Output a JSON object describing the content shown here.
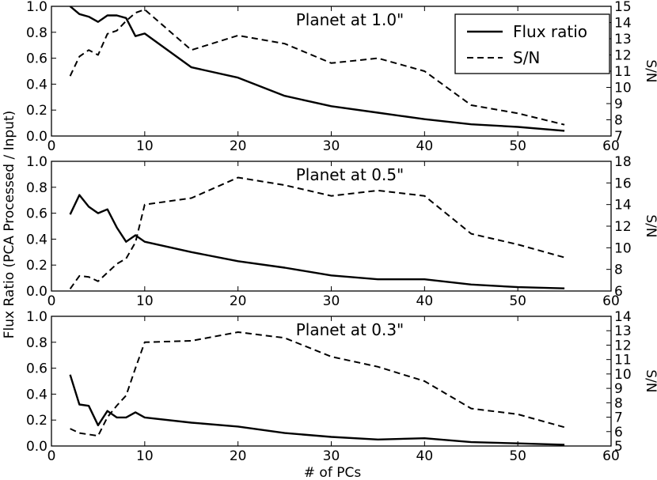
{
  "figure": {
    "ylabel_left": "Flux Ratio (PCA Processed / Input)",
    "xlabel": "# of PCs"
  },
  "legend": {
    "items": [
      {
        "label": "Flux ratio",
        "style": "solid"
      },
      {
        "label": "S/N",
        "style": "dashed"
      }
    ]
  },
  "chart_data": [
    {
      "type": "line",
      "title": "Planet at 1.0\"",
      "xlabel": "",
      "ylabel": "",
      "y2label": "S/N",
      "xlim": [
        0,
        60
      ],
      "ylim": [
        0.0,
        1.0
      ],
      "y2lim": [
        7,
        15
      ],
      "xticks": [
        0,
        10,
        20,
        30,
        40,
        50,
        60
      ],
      "yticks": [
        "0.0",
        "0.2",
        "0.4",
        "0.6",
        "0.8",
        "1.0"
      ],
      "y2ticks": [
        7,
        8,
        9,
        10,
        11,
        12,
        13,
        14,
        15
      ],
      "series": [
        {
          "name": "Flux ratio",
          "axis": "left",
          "style": "solid",
          "x": [
            2,
            3,
            4,
            5,
            6,
            7,
            8,
            9,
            10,
            15,
            20,
            25,
            30,
            35,
            40,
            45,
            50,
            55
          ],
          "y": [
            1.0,
            0.94,
            0.92,
            0.88,
            0.93,
            0.93,
            0.91,
            0.77,
            0.79,
            0.53,
            0.45,
            0.31,
            0.23,
            0.18,
            0.13,
            0.09,
            0.07,
            0.04
          ]
        },
        {
          "name": "S/N",
          "axis": "right",
          "style": "dashed",
          "x": [
            2,
            3,
            4,
            5,
            6,
            7,
            8,
            9,
            10,
            15,
            20,
            25,
            30,
            35,
            40,
            45,
            50,
            55
          ],
          "y": [
            10.7,
            11.9,
            12.3,
            12.0,
            13.3,
            13.5,
            14.1,
            14.6,
            14.8,
            12.3,
            13.2,
            12.7,
            11.5,
            11.8,
            11.0,
            8.9,
            8.4,
            7.7
          ]
        }
      ]
    },
    {
      "type": "line",
      "title": "Planet at 0.5\"",
      "xlabel": "",
      "ylabel": "",
      "y2label": "S/N",
      "xlim": [
        0,
        60
      ],
      "ylim": [
        0.0,
        1.0
      ],
      "y2lim": [
        6,
        18
      ],
      "xticks": [
        0,
        10,
        20,
        30,
        40,
        50,
        60
      ],
      "yticks": [
        "0.0",
        "0.2",
        "0.4",
        "0.6",
        "0.8",
        "1.0"
      ],
      "y2ticks": [
        6,
        8,
        10,
        12,
        14,
        16,
        18
      ],
      "series": [
        {
          "name": "Flux ratio",
          "axis": "left",
          "style": "solid",
          "x": [
            2,
            3,
            4,
            5,
            6,
            7,
            8,
            9,
            10,
            15,
            20,
            25,
            30,
            35,
            40,
            45,
            50,
            55
          ],
          "y": [
            0.59,
            0.74,
            0.65,
            0.6,
            0.63,
            0.49,
            0.38,
            0.43,
            0.38,
            0.3,
            0.23,
            0.18,
            0.12,
            0.09,
            0.09,
            0.05,
            0.03,
            0.02
          ]
        },
        {
          "name": "S/N",
          "axis": "right",
          "style": "dashed",
          "x": [
            2,
            3,
            4,
            5,
            6,
            7,
            8,
            9,
            10,
            15,
            20,
            25,
            30,
            35,
            40,
            45,
            50,
            55
          ],
          "y": [
            6.2,
            7.4,
            7.3,
            6.9,
            7.7,
            8.5,
            9.0,
            10.5,
            14.0,
            14.6,
            16.5,
            15.8,
            14.8,
            15.3,
            14.8,
            11.3,
            10.3,
            9.1
          ]
        }
      ]
    },
    {
      "type": "line",
      "title": "Planet at 0.3\"",
      "xlabel": "# of PCs",
      "ylabel": "",
      "y2label": "S/N",
      "xlim": [
        0,
        60
      ],
      "ylim": [
        0.0,
        1.0
      ],
      "y2lim": [
        5,
        14
      ],
      "xticks": [
        0,
        10,
        20,
        30,
        40,
        50,
        60
      ],
      "yticks": [
        "0.0",
        "0.2",
        "0.4",
        "0.6",
        "0.8",
        "1.0"
      ],
      "y2ticks": [
        5,
        6,
        7,
        8,
        9,
        10,
        11,
        12,
        13,
        14
      ],
      "series": [
        {
          "name": "Flux ratio",
          "axis": "left",
          "style": "solid",
          "x": [
            2,
            3,
            4,
            5,
            6,
            7,
            8,
            9,
            10,
            15,
            20,
            25,
            30,
            35,
            40,
            45,
            50,
            55
          ],
          "y": [
            0.55,
            0.32,
            0.31,
            0.16,
            0.27,
            0.22,
            0.22,
            0.26,
            0.22,
            0.18,
            0.15,
            0.1,
            0.07,
            0.05,
            0.06,
            0.03,
            0.02,
            0.01
          ]
        },
        {
          "name": "S/N",
          "axis": "right",
          "style": "dashed",
          "x": [
            2,
            3,
            4,
            5,
            6,
            7,
            8,
            9,
            10,
            15,
            20,
            25,
            30,
            35,
            40,
            45,
            50,
            55
          ],
          "y": [
            6.2,
            5.9,
            5.8,
            5.7,
            7.0,
            7.8,
            8.5,
            10.4,
            12.2,
            12.3,
            12.9,
            12.5,
            11.2,
            10.5,
            9.5,
            7.6,
            7.2,
            6.3
          ]
        }
      ]
    }
  ]
}
